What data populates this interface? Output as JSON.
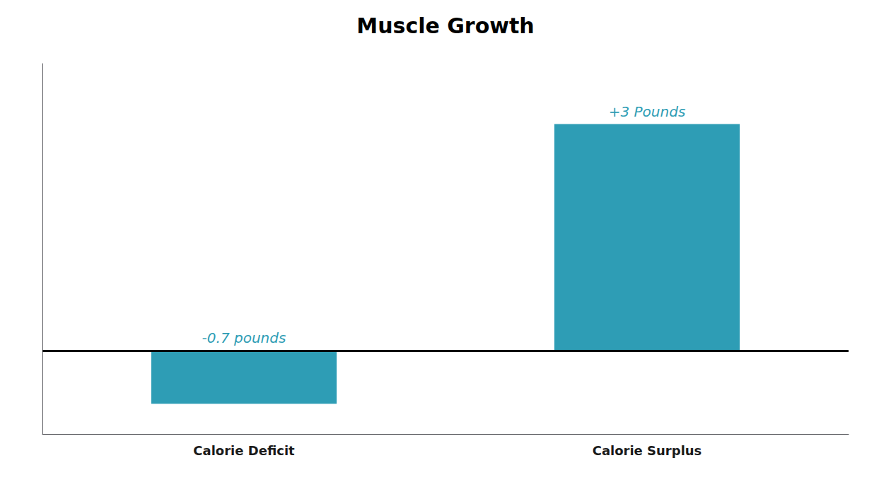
{
  "chart_data": {
    "type": "bar",
    "title": "Muscle Growth",
    "categories": [
      "Calorie Deficit",
      "Calorie Surplus"
    ],
    "values": [
      -0.7,
      3.0
    ],
    "value_labels": [
      "-0.7 pounds",
      "+3 Pounds"
    ],
    "color": "#2E9DB5",
    "ylim": [
      -1.1,
      3.8
    ],
    "data_labels": true,
    "tick_labels": "x",
    "grid": false
  }
}
